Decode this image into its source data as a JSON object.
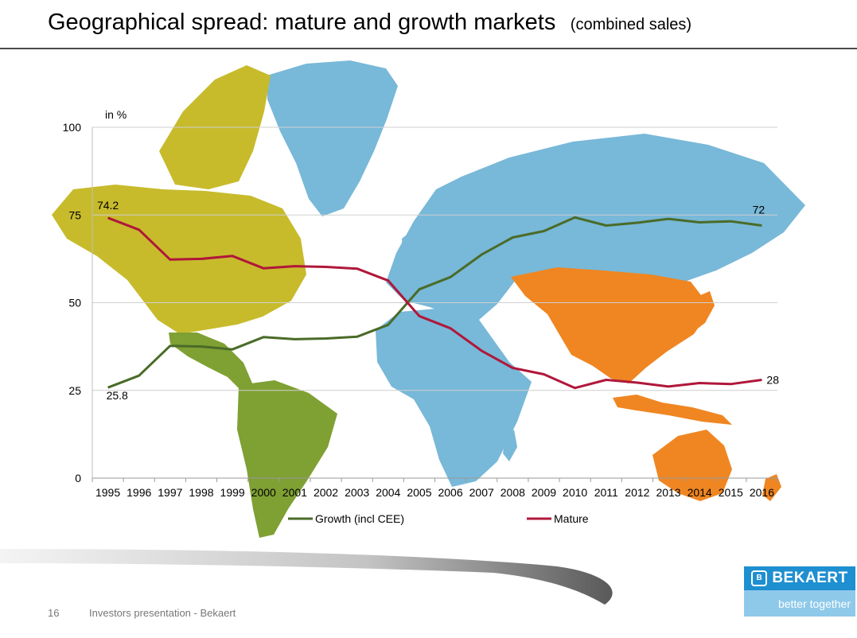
{
  "slide": {
    "title": "Geographical spread: mature and growth markets",
    "subtitle": "(combined sales)",
    "page_number": "16",
    "footer": "Investors presentation - Bekaert"
  },
  "logo": {
    "brand": "BEKAERT",
    "tagline": "better together",
    "colors": {
      "top": "#1e8fd0",
      "bottom": "#8ec9ea"
    }
  },
  "map_colors": {
    "north_america": "#c7bb2c",
    "latin_america": "#7fa033",
    "europe_africa_russia": "#78b8d8",
    "asia_pacific": "#ef8622"
  },
  "chart_data": {
    "type": "line",
    "unit_label": "in %",
    "x": [
      1995,
      1996,
      1997,
      1998,
      1999,
      2000,
      2001,
      2002,
      2003,
      2004,
      2005,
      2006,
      2007,
      2008,
      2009,
      2010,
      2011,
      2012,
      2013,
      2014,
      2015,
      2016
    ],
    "ylim": [
      0,
      100
    ],
    "yticks": [
      0,
      25,
      50,
      75,
      100
    ],
    "grid": true,
    "legend_position": "bottom",
    "series": [
      {
        "name": "Growth (incl CEE)",
        "color": "#4a6b28",
        "values": [
          25.8,
          29.2,
          37.7,
          37.5,
          36.7,
          40.2,
          39.6,
          39.8,
          40.3,
          43.7,
          53.8,
          57.3,
          63.7,
          68.6,
          70.4,
          74.3,
          72.0,
          72.8,
          73.9,
          72.9,
          73.2,
          72.0
        ]
      },
      {
        "name": "Mature",
        "color": "#b0173a",
        "values": [
          74.2,
          70.8,
          62.3,
          62.5,
          63.3,
          59.8,
          60.4,
          60.2,
          59.7,
          56.3,
          46.2,
          42.7,
          36.3,
          31.4,
          29.6,
          25.7,
          28.0,
          27.2,
          26.1,
          27.1,
          26.8,
          28.0
        ]
      }
    ],
    "data_labels": [
      {
        "text": "74.2",
        "series": "Mature",
        "x": 1995
      },
      {
        "text": "25.8",
        "series": "Growth (incl CEE)",
        "x": 1995
      },
      {
        "text": "72",
        "series": "Growth (incl CEE)",
        "x": 2016
      },
      {
        "text": "28",
        "series": "Mature",
        "x": 2016
      }
    ]
  }
}
